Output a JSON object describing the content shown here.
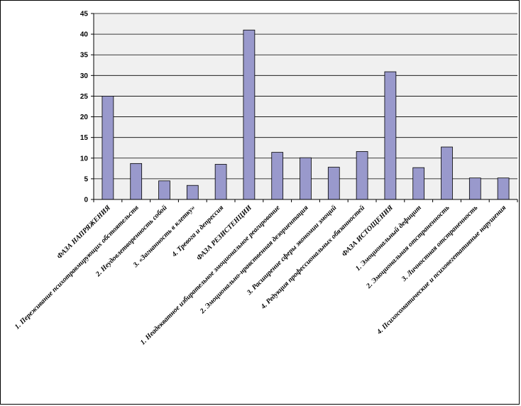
{
  "chart_data": {
    "type": "bar",
    "title": "",
    "xlabel": "",
    "ylabel": "",
    "ylim": [
      0,
      45
    ],
    "yticks": [
      0,
      5,
      10,
      15,
      20,
      25,
      30,
      35,
      40,
      45
    ],
    "grid": true,
    "legend": "none",
    "bar_color": "#9999cc",
    "bar_edge_color": "#000000",
    "plot_background": "#f0f0f0",
    "categories": [
      "ФАЗА НАПРЯЖЕНИЯ",
      "1. Переживание психотравмирующих обстоятельств",
      "2. Неудовлетворенность собой",
      "3. «Загнанность в клетку»",
      "4. Тревога и депрессия",
      "ФАЗА  РЕЗИСТЕНЦИИ",
      "1. Неадекватное избирательное эмоциональное реагирование",
      "2. Эмоционально-нравственная дезориентация",
      "3. Расширение сферы экономии эмоций",
      "4. Редукция профессиональных обязанностей",
      "ФАЗА ИСТОЩЕНИЯ",
      "1.  Эмоциональный  дефицит",
      "2.  Эмоциональная  отстраненность",
      "3. Личностная отстраненность",
      "4. Психосоматические и психовегетативные нарушения"
    ],
    "values": [
      25,
      8.7,
      4.5,
      3.4,
      8.5,
      41,
      11.4,
      10.1,
      7.8,
      11.6,
      30.9,
      7.7,
      12.7,
      5.2,
      5.2
    ]
  }
}
